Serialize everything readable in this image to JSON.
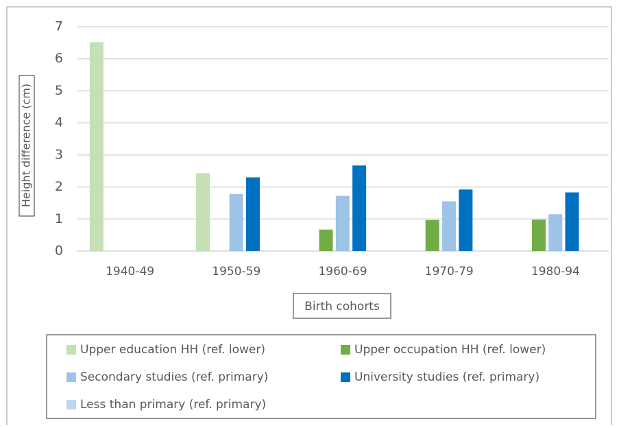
{
  "chart_data": {
    "type": "bar",
    "x_label": "Birth cohorts",
    "y_label": "Height difference (cm)",
    "categories": [
      "1940-49",
      "1950-59",
      "1960-69",
      "1970-79",
      "1980-94"
    ],
    "series": [
      {
        "name": "Upper education HH (ref. lower)",
        "color": "#c5e0b4",
        "values": [
          6.52,
          2.43,
          null,
          null,
          null
        ]
      },
      {
        "name": "Upper occupation HH (ref. lower)",
        "color": "#70ad47",
        "values": [
          null,
          null,
          0.67,
          0.97,
          0.98
        ]
      },
      {
        "name": "Secondary studies (ref. primary)",
        "color": "#9dc3e6",
        "values": [
          null,
          1.78,
          1.72,
          1.55,
          1.15
        ]
      },
      {
        "name": "University studies (ref. primary)",
        "color": "#0070c0",
        "values": [
          null,
          2.3,
          2.67,
          1.92,
          1.83
        ]
      },
      {
        "name": "Less than primary (ref. primary)",
        "color": "#bdd7ee",
        "values": [
          null,
          null,
          null,
          null,
          null
        ]
      }
    ],
    "ylim": [
      0,
      7
    ],
    "yticks": [
      0,
      1,
      2,
      3,
      4,
      5,
      6,
      7
    ],
    "grid": true
  }
}
